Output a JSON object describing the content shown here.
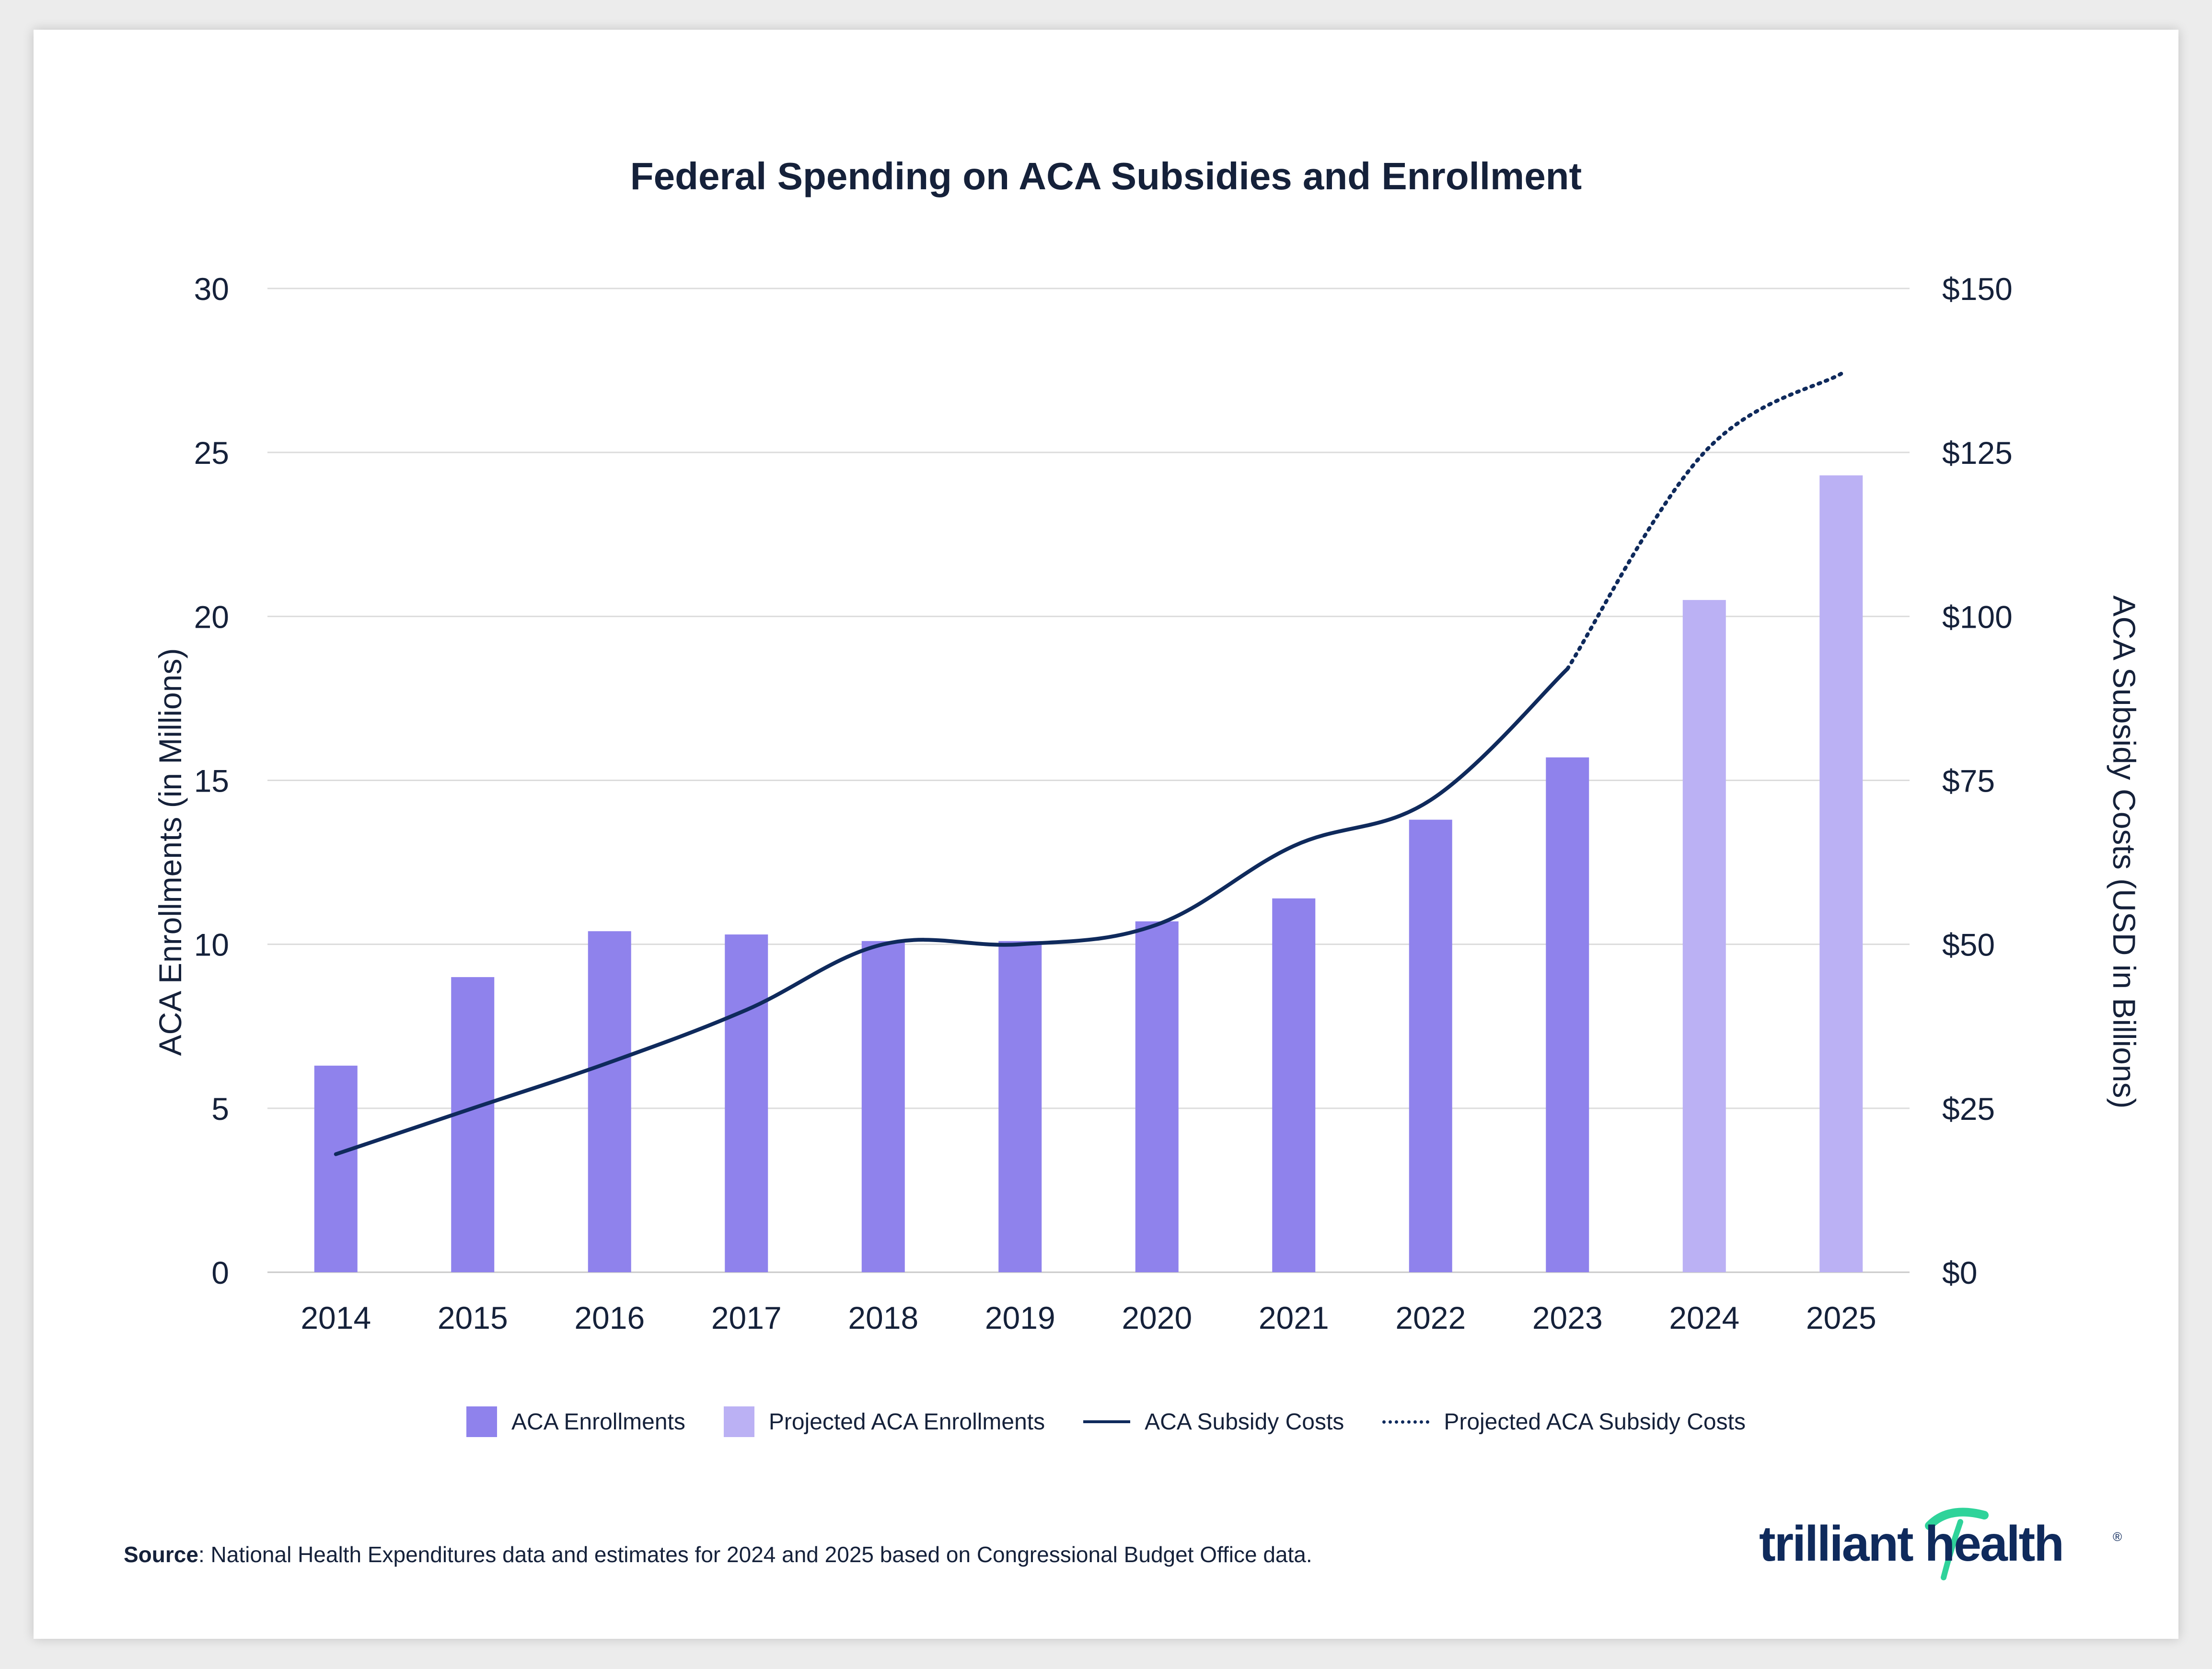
{
  "chart_data": {
    "type": "bar",
    "title": "Federal Spending on ACA Subsidies and Enrollment",
    "categories": [
      "2014",
      "2015",
      "2016",
      "2017",
      "2018",
      "2019",
      "2020",
      "2021",
      "2022",
      "2023",
      "2024",
      "2025"
    ],
    "y_left": {
      "label": "ACA Enrollments (in Millions)",
      "ticks": [
        "0",
        "5",
        "10",
        "15",
        "20",
        "25",
        "30"
      ],
      "range": [
        0,
        30
      ]
    },
    "y_right": {
      "label": "ACA Subsidy Costs (USD in Billions)",
      "ticks": [
        "$0",
        "$25",
        "$50",
        "$75",
        "$100",
        "$125",
        "$150"
      ],
      "range": [
        0,
        150
      ]
    },
    "grid": true,
    "legend_position": "bottom",
    "series": [
      {
        "name": "ACA Enrollments",
        "type": "bar",
        "axis": "left",
        "color": "#8f82ec",
        "values": [
          6.3,
          9.0,
          10.4,
          10.3,
          10.1,
          10.1,
          10.7,
          11.4,
          13.8,
          15.7,
          null,
          null
        ]
      },
      {
        "name": "Projected ACA Enrollments",
        "type": "bar",
        "axis": "left",
        "color": "#bbb1f4",
        "values": [
          null,
          null,
          null,
          null,
          null,
          null,
          null,
          null,
          null,
          null,
          20.5,
          24.3
        ]
      },
      {
        "name": "ACA Subsidy Costs",
        "type": "line",
        "axis": "right",
        "color": "#0f2a5c",
        "dash": "solid",
        "values": [
          18,
          25,
          32,
          40,
          50,
          50,
          53,
          65,
          72,
          92,
          null,
          null
        ]
      },
      {
        "name": "Projected ACA Subsidy Costs",
        "type": "line",
        "axis": "right",
        "color": "#0f2a5c",
        "dash": "dotted",
        "values": [
          null,
          null,
          null,
          null,
          null,
          null,
          null,
          null,
          null,
          92,
          125,
          137
        ]
      }
    ]
  },
  "source": {
    "prefix": "Source",
    "text": ": National Health Expenditures data and estimates for 2024 and 2025 based on Congressional Budget Office data."
  },
  "logo": {
    "text": "trilliant health",
    "registered": "®"
  },
  "colors": {
    "text": "#15213a",
    "grid": "#dcdcdc",
    "logo_accent": "#2fd39a"
  }
}
